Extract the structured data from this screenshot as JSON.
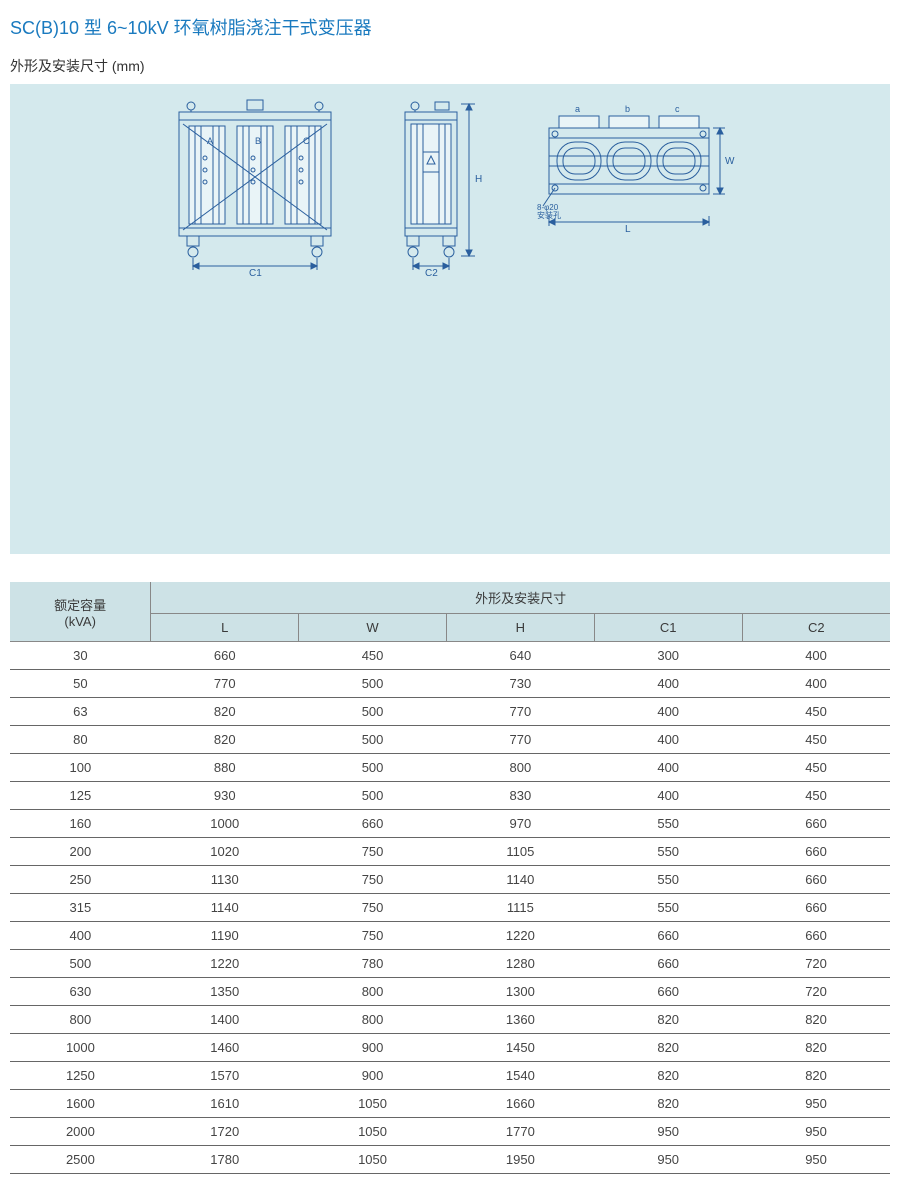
{
  "title": "SC(B)10 型 6~10kV 环氧树脂浇注干式变压器",
  "subtitle": "外形及安装尺寸 (mm)",
  "diagram": {
    "background_color": "#d4e9ed",
    "stroke_color": "#2a5f9e",
    "front": {
      "labels": [
        "A",
        "B",
        "C"
      ],
      "bottom_dim": "C1"
    },
    "side": {
      "right_dim": "H",
      "bottom_dim": "C2",
      "warning": "⚠"
    },
    "top": {
      "labels": [
        "a",
        "b",
        "c"
      ],
      "note1": "8-φ20",
      "note2": "安装孔",
      "bottom_dim": "L"
    }
  },
  "table": {
    "header_bg": "#cde2e6",
    "border_color": "#666666",
    "capacity_header_line1": "额定容量",
    "capacity_header_line2": "(kVA)",
    "dim_group_header": "外形及安装尺寸",
    "columns": [
      "L",
      "W",
      "H",
      "C1",
      "C2"
    ],
    "rows": [
      [
        30,
        660,
        450,
        640,
        300,
        400
      ],
      [
        50,
        770,
        500,
        730,
        400,
        400
      ],
      [
        63,
        820,
        500,
        770,
        400,
        450
      ],
      [
        80,
        820,
        500,
        770,
        400,
        450
      ],
      [
        100,
        880,
        500,
        800,
        400,
        450
      ],
      [
        125,
        930,
        500,
        830,
        400,
        450
      ],
      [
        160,
        1000,
        660,
        970,
        550,
        660
      ],
      [
        200,
        1020,
        750,
        1105,
        550,
        660
      ],
      [
        250,
        1130,
        750,
        1140,
        550,
        660
      ],
      [
        315,
        1140,
        750,
        1115,
        550,
        660
      ],
      [
        400,
        1190,
        750,
        1220,
        660,
        660
      ],
      [
        500,
        1220,
        780,
        1280,
        660,
        720
      ],
      [
        630,
        1350,
        800,
        1300,
        660,
        720
      ],
      [
        800,
        1400,
        800,
        1360,
        820,
        820
      ],
      [
        1000,
        1460,
        900,
        1450,
        820,
        820
      ],
      [
        1250,
        1570,
        900,
        1540,
        820,
        820
      ],
      [
        1600,
        1610,
        1050,
        1660,
        820,
        950
      ],
      [
        2000,
        1720,
        1050,
        1770,
        950,
        950
      ],
      [
        2500,
        1780,
        1050,
        1950,
        950,
        950
      ]
    ]
  }
}
